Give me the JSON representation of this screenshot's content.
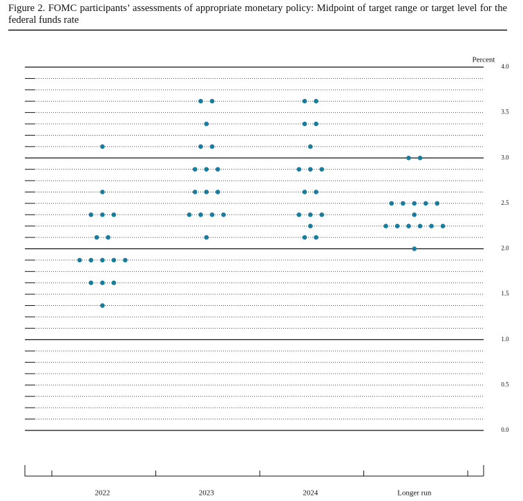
{
  "chart_data": {
    "type": "dot",
    "title": "Figure 2.  FOMC participants’ assessments of appropriate monetary policy: Midpoint of target range or target level for the federal funds rate",
    "y_label": "Percent",
    "categories": [
      "2022",
      "2023",
      "2024",
      "Longer run"
    ],
    "values": [
      [
        3.125,
        2.625,
        2.375,
        2.375,
        2.375,
        2.125,
        2.125,
        1.875,
        1.875,
        1.875,
        1.875,
        1.875,
        1.625,
        1.625,
        1.625,
        1.375
      ],
      [
        3.625,
        3.625,
        3.375,
        3.125,
        3.125,
        2.875,
        2.875,
        2.875,
        2.625,
        2.625,
        2.625,
        2.375,
        2.375,
        2.375,
        2.375,
        2.125
      ],
      [
        3.625,
        3.625,
        3.375,
        3.375,
        3.125,
        2.875,
        2.875,
        2.875,
        2.625,
        2.625,
        2.375,
        2.375,
        2.375,
        2.25,
        2.125,
        2.125
      ],
      [
        3.0,
        3.0,
        2.5,
        2.5,
        2.5,
        2.5,
        2.5,
        2.375,
        2.25,
        2.25,
        2.25,
        2.25,
        2.25,
        2.25,
        2.0
      ]
    ],
    "color": "#1a7c9c",
    "ylim": [
      0,
      4
    ],
    "yticks": [
      {
        "value": 0,
        "label": "0.0"
      },
      {
        "value": 0.5,
        "label": "0.5"
      },
      {
        "value": 1,
        "label": "1.0"
      },
      {
        "value": 1.5,
        "label": "1.5"
      },
      {
        "value": 2,
        "label": "2.0"
      },
      {
        "value": 2.5,
        "label": "2.5"
      },
      {
        "value": 3,
        "label": "3.0"
      },
      {
        "value": 3.5,
        "label": "3.5"
      },
      {
        "value": 4,
        "label": "4.0"
      }
    ],
    "minor_yticks": [
      0.125,
      0.25,
      0.375,
      0.625,
      0.75,
      0.875,
      1.125,
      1.25,
      1.375,
      1.625,
      1.75,
      1.875,
      2.125,
      2.25,
      2.375,
      2.625,
      2.75,
      2.875,
      3.125,
      3.25,
      3.375,
      3.625,
      3.75,
      3.875
    ],
    "grid": true
  }
}
